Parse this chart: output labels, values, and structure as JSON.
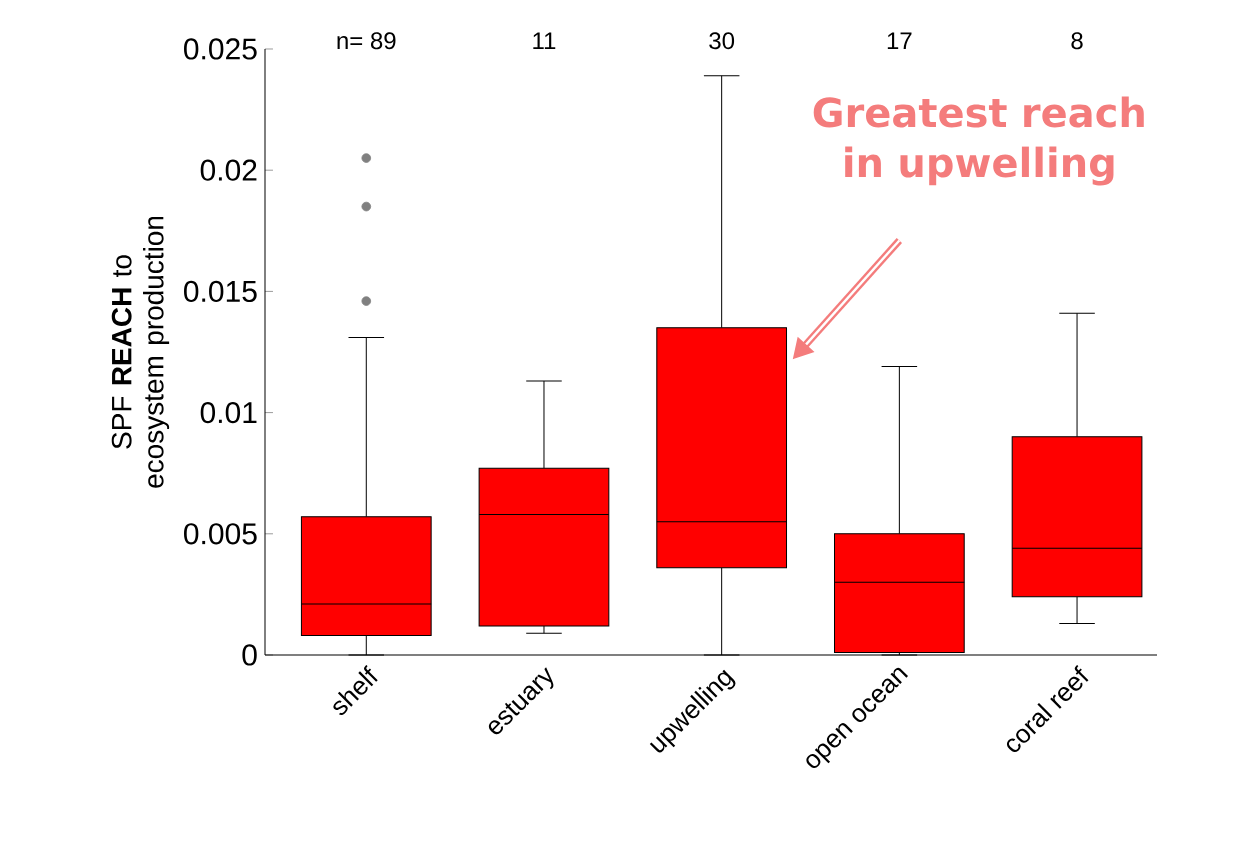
{
  "chart_data": {
    "type": "box",
    "ylabel": "SPF **REACH** to ecosystem production",
    "categories": [
      "shelf",
      "estuary",
      "upwelling",
      "open ocean",
      "coral reef"
    ],
    "color": "#ff0000",
    "boxes": [
      {
        "low": 0,
        "q1": 0.0008,
        "median": 0.0021,
        "q3": 0.0057,
        "high": 0.0131,
        "outliers": [
          0.0205,
          0.0185,
          0.0146
        ]
      },
      {
        "low": 0.0009,
        "q1": 0.0012,
        "median": 0.0058,
        "q3": 0.0077,
        "high": 0.0113
      },
      {
        "low": 0,
        "q1": 0.0036,
        "median": 0.0055,
        "q3": 0.0135,
        "high": 0.0239
      },
      {
        "low": 0,
        "q1": 0.0001,
        "median": 0.003,
        "q3": 0.005,
        "high": 0.0119
      },
      {
        "low": 0.0013,
        "q1": 0.0024,
        "median": 0.0044,
        "q3": 0.009,
        "high": 0.0141
      }
    ],
    "ylim": [
      0,
      0.025
    ],
    "yticks": [
      0,
      0.005,
      0.01,
      0.015,
      0.02,
      0.025
    ],
    "annotations": [
      "n= 89",
      "11",
      "30",
      "17",
      "8",
      "Greatest reach in upwelling"
    ]
  }
}
